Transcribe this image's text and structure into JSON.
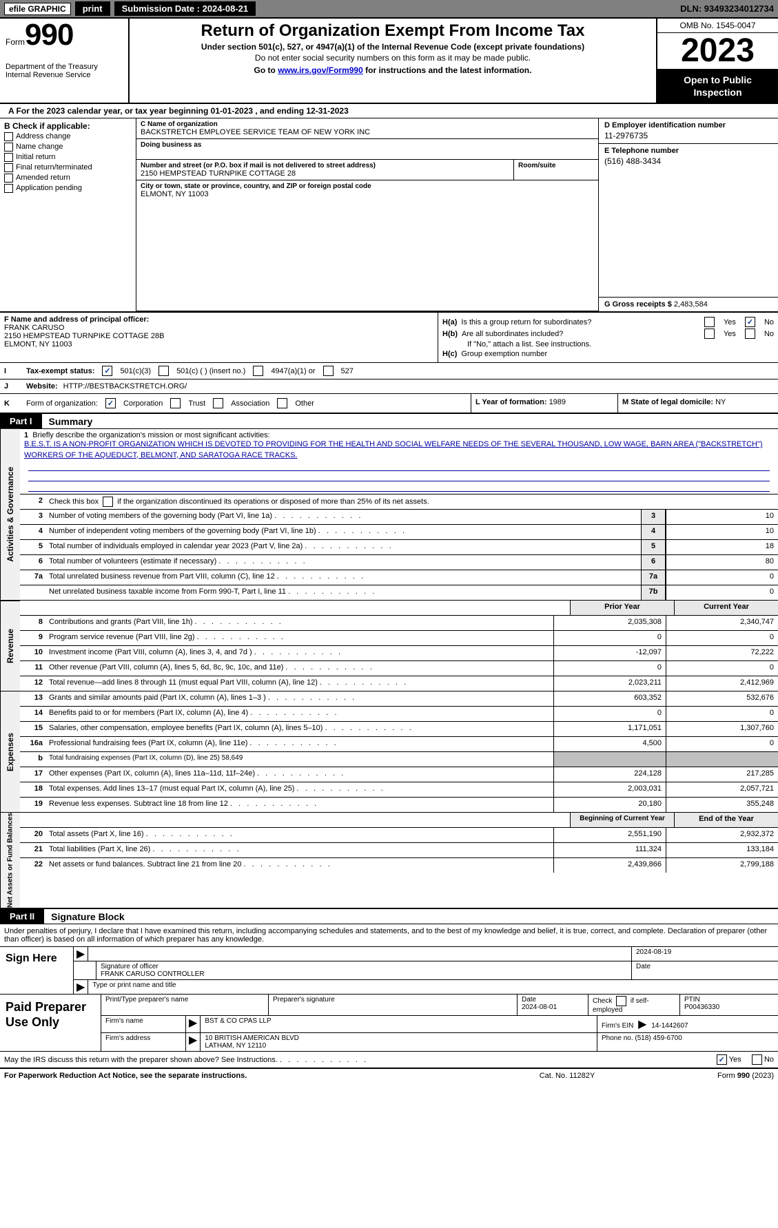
{
  "topbar": {
    "efile": "efile GRAPHIC",
    "print": "print",
    "sub_label": "Submission Date : 2024-08-21",
    "dln": "DLN: 93493234012734"
  },
  "header": {
    "form_word": "Form",
    "form_num": "990",
    "dept": "Department of the Treasury",
    "irs": "Internal Revenue Service",
    "title": "Return of Organization Exempt From Income Tax",
    "sub1": "Under section 501(c), 527, or 4947(a)(1) of the Internal Revenue Code (except private foundations)",
    "sub2": "Do not enter social security numbers on this form as it may be made public.",
    "sub3_pre": "Go to ",
    "sub3_link": "www.irs.gov/Form990",
    "sub3_post": " for instructions and the latest information.",
    "omb": "OMB No. 1545-0047",
    "year": "2023",
    "open": "Open to Public Inspection"
  },
  "a_line": "A For the 2023 calendar year, or tax year beginning 01-01-2023    , and ending 12-31-2023",
  "col_b": {
    "title": "B Check if applicable:",
    "items": [
      "Address change",
      "Name change",
      "Initial return",
      "Final return/terminated",
      "Amended return",
      "Application pending"
    ]
  },
  "col_c": {
    "name_label": "C Name of organization",
    "name_val": "BACKSTRETCH EMPLOYEE SERVICE TEAM OF NEW YORK INC",
    "dba_label": "Doing business as",
    "addr_label": "Number and street (or P.O. box if mail is not delivered to street address)",
    "addr_val": "2150 HEMPSTEAD TURNPIKE COTTAGE 28",
    "room_label": "Room/suite",
    "city_label": "City or town, state or province, country, and ZIP or foreign postal code",
    "city_val": "ELMONT, NY  11003"
  },
  "col_de": {
    "d_label": "D Employer identification number",
    "d_val": "11-2976735",
    "e_label": "E Telephone number",
    "e_val": "(516) 488-3434",
    "g_label": "G Gross receipts $ ",
    "g_val": "2,483,584"
  },
  "f": {
    "label": "F Name and address of principal officer:",
    "name": "FRANK CARUSO",
    "addr": "2150 HEMPSTEAD TURNPIKE COTTAGE 28B",
    "city": "ELMONT, NY  11003"
  },
  "h": {
    "a1": "H(a)",
    "a1_text": "Is this a group return for subordinates?",
    "b1": "H(b)",
    "b1_text": "Are all subordinates included?",
    "b2": "If \"No,\" attach a list. See instructions.",
    "c1": "H(c)",
    "c1_text": "Group exemption number",
    "yes": "Yes",
    "no": "No"
  },
  "i": {
    "label": "I",
    "field": "Tax-exempt status:",
    "o1": "501(c)(3)",
    "o2": "501(c) (  ) (insert no.)",
    "o3": "4947(a)(1) or",
    "o4": "527"
  },
  "j": {
    "label": "J",
    "field": "Website:",
    "val": "HTTP://BESTBACKSTRETCH.ORG/"
  },
  "k": {
    "label": "K",
    "field": "Form of organization:",
    "o1": "Corporation",
    "o2": "Trust",
    "o3": "Association",
    "o4": "Other"
  },
  "l": {
    "label": "L Year of formation: ",
    "val": "1989"
  },
  "m": {
    "label": "M State of legal domicile: ",
    "val": "NY"
  },
  "part1": {
    "hdr": "Part I",
    "title": "Summary"
  },
  "mission": {
    "num": "1",
    "label": "Briefly describe the organization's mission or most significant activities:",
    "text": "B.E.S.T. IS A NON-PROFIT ORGANIZATION WHICH IS DEVOTED TO PROVIDING FOR THE HEALTH AND SOCIAL WELFARE NEEDS OF THE SEVERAL THOUSAND, LOW WAGE, BARN AREA (\"BACKSTRETCH\") WORKERS OF THE AQUEDUCT, BELMONT, AND SARATOGA RACE TRACKS."
  },
  "sect_gov": "Activities & Governance",
  "sect_rev": "Revenue",
  "sect_exp": "Expenses",
  "sect_net": "Net Assets or Fund Balances",
  "line2": {
    "num": "2",
    "text": "Check this box    if the organization discontinued its operations or disposed of more than 25% of its net assets."
  },
  "gov_lines": [
    {
      "num": "3",
      "text": "Number of voting members of the governing body (Part VI, line 1a)",
      "box": "3",
      "val": "10"
    },
    {
      "num": "4",
      "text": "Number of independent voting members of the governing body (Part VI, line 1b)",
      "box": "4",
      "val": "10"
    },
    {
      "num": "5",
      "text": "Total number of individuals employed in calendar year 2023 (Part V, line 2a)",
      "box": "5",
      "val": "18"
    },
    {
      "num": "6",
      "text": "Total number of volunteers (estimate if necessary)",
      "box": "6",
      "val": "80"
    },
    {
      "num": "7a",
      "text": "Total unrelated business revenue from Part VIII, column (C), line 12",
      "box": "7a",
      "val": "0"
    },
    {
      "num": "",
      "text": "Net unrelated business taxable income from Form 990-T, Part I, line 11",
      "box": "7b",
      "val": "0"
    }
  ],
  "b_line": "b",
  "col_hdrs": {
    "prior": "Prior Year",
    "current": "Current Year"
  },
  "rev_lines": [
    {
      "num": "8",
      "text": "Contributions and grants (Part VIII, line 1h)",
      "prior": "2,035,308",
      "cur": "2,340,747"
    },
    {
      "num": "9",
      "text": "Program service revenue (Part VIII, line 2g)",
      "prior": "0",
      "cur": "0"
    },
    {
      "num": "10",
      "text": "Investment income (Part VIII, column (A), lines 3, 4, and 7d )",
      "prior": "-12,097",
      "cur": "72,222"
    },
    {
      "num": "11",
      "text": "Other revenue (Part VIII, column (A), lines 5, 6d, 8c, 9c, 10c, and 11e)",
      "prior": "0",
      "cur": "0"
    },
    {
      "num": "12",
      "text": "Total revenue—add lines 8 through 11 (must equal Part VIII, column (A), line 12)",
      "prior": "2,023,211",
      "cur": "2,412,969"
    }
  ],
  "exp_lines": [
    {
      "num": "13",
      "text": "Grants and similar amounts paid (Part IX, column (A), lines 1–3 )",
      "prior": "603,352",
      "cur": "532,676"
    },
    {
      "num": "14",
      "text": "Benefits paid to or for members (Part IX, column (A), line 4)",
      "prior": "0",
      "cur": "0"
    },
    {
      "num": "15",
      "text": "Salaries, other compensation, employee benefits (Part IX, column (A), lines 5–10)",
      "prior": "1,171,051",
      "cur": "1,307,760"
    },
    {
      "num": "16a",
      "text": "Professional fundraising fees (Part IX, column (A), line 11e)",
      "prior": "4,500",
      "cur": "0"
    },
    {
      "num": "b",
      "text": "Total fundraising expenses (Part IX, column (D), line 25) 58,649",
      "prior": "",
      "cur": "",
      "grey": true,
      "small": true
    },
    {
      "num": "17",
      "text": "Other expenses (Part IX, column (A), lines 11a–11d, 11f–24e)",
      "prior": "224,128",
      "cur": "217,285"
    },
    {
      "num": "18",
      "text": "Total expenses. Add lines 13–17 (must equal Part IX, column (A), line 25)",
      "prior": "2,003,031",
      "cur": "2,057,721"
    },
    {
      "num": "19",
      "text": "Revenue less expenses. Subtract line 18 from line 12",
      "prior": "20,180",
      "cur": "355,248"
    }
  ],
  "net_hdrs": {
    "begin": "Beginning of Current Year",
    "end": "End of the Year"
  },
  "net_lines": [
    {
      "num": "20",
      "text": "Total assets (Part X, line 16)",
      "prior": "2,551,190",
      "cur": "2,932,372"
    },
    {
      "num": "21",
      "text": "Total liabilities (Part X, line 26)",
      "prior": "111,324",
      "cur": "133,184"
    },
    {
      "num": "22",
      "text": "Net assets or fund balances. Subtract line 21 from line 20",
      "prior": "2,439,866",
      "cur": "2,799,188"
    }
  ],
  "part2": {
    "hdr": "Part II",
    "title": "Signature Block"
  },
  "penalties": "Under penalties of perjury, I declare that I have examined this return, including accompanying schedules and statements, and to the best of my knowledge and belief, it is true, correct, and complete. Declaration of preparer (other than officer) is based on all information of which preparer has any knowledge.",
  "sign": {
    "side": "Sign Here",
    "sig_label": "Signature of officer",
    "name": "FRANK CARUSO  CONTROLLER",
    "type_label": "Type or print name and title",
    "date_label": "Date",
    "date": "2024-08-19"
  },
  "paid": {
    "side": "Paid Preparer Use Only",
    "name_label": "Print/Type preparer's name",
    "sig_label": "Preparer's signature",
    "date_label": "Date",
    "date": "2024-08-01",
    "check_label": "Check     if self-employed",
    "ptin_label": "PTIN",
    "ptin": "P00436330",
    "firm_name_label": "Firm's name",
    "firm_name": "BST & CO CPAS LLP",
    "firm_ein_label": "Firm's EIN",
    "firm_ein": "14-1442607",
    "firm_addr_label": "Firm's address",
    "firm_addr1": "10 BRITISH AMERICAN BLVD",
    "firm_addr2": "LATHAM, NY  12110",
    "phone_label": "Phone no.",
    "phone": "(518) 459-6700"
  },
  "discuss": {
    "text": "May the IRS discuss this return with the preparer shown above? See Instructions.",
    "yes": "Yes",
    "no": "No"
  },
  "footer": {
    "left": "For Paperwork Reduction Act Notice, see the separate instructions.",
    "center": "Cat. No. 11282Y",
    "right_pre": "Form ",
    "right_bold": "990",
    "right_post": " (2023)"
  }
}
